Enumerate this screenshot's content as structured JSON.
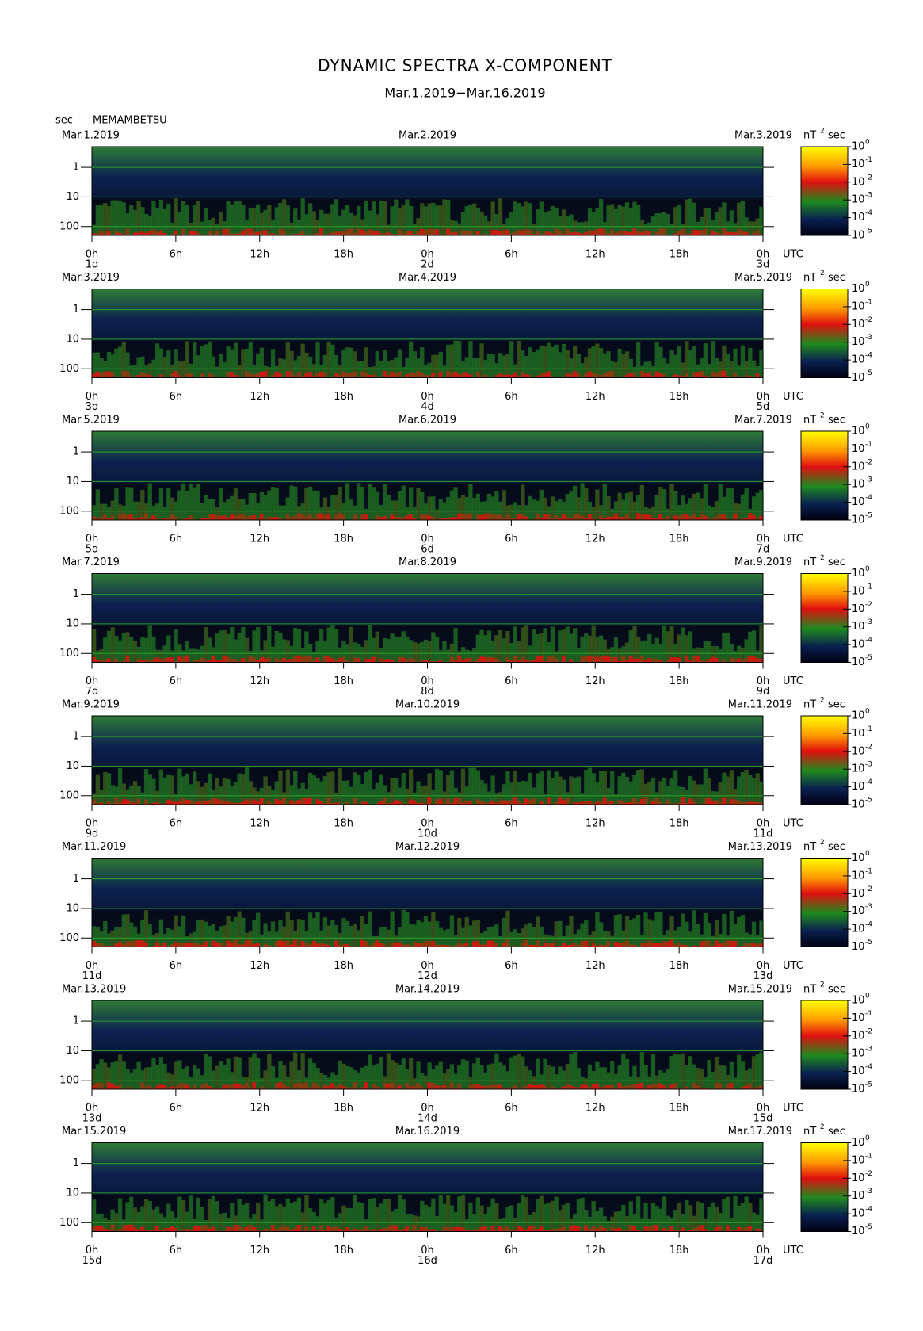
{
  "chart_data": {
    "type": "spectrogram",
    "title": "DYNAMIC SPECTRA X-COMPONENT",
    "subtitle": "Mar.1.2019−Mar.16.2019",
    "y_label": "sec",
    "station": "MEMAMBETSU",
    "x_unit": "UTC",
    "xlim": [
      0,
      48
    ],
    "xticks": [
      {
        "value": 0,
        "label": "0h"
      },
      {
        "value": 6,
        "label": "6h"
      },
      {
        "value": 12,
        "label": "12h"
      },
      {
        "value": 18,
        "label": "18h"
      },
      {
        "value": 24,
        "label": "0h"
      },
      {
        "value": 30,
        "label": "6h"
      },
      {
        "value": 36,
        "label": "12h"
      },
      {
        "value": 42,
        "label": "18h"
      },
      {
        "value": 48,
        "label": "0h"
      }
    ],
    "log_y": true,
    "ylim": [
      0.2,
      200
    ],
    "yticks": [
      1,
      10,
      100
    ],
    "colorbar": {
      "label": "nT",
      "label_exponent": "2",
      "unit": "sec",
      "lim": [
        1e-05,
        1
      ],
      "ticks": [
        {
          "value": 1,
          "label": "10",
          "exponent": "0"
        },
        {
          "value": 0.1,
          "label": "10",
          "exponent": "-1"
        },
        {
          "value": 0.01,
          "label": "10",
          "exponent": "-2"
        },
        {
          "value": 0.001,
          "label": "10",
          "exponent": "-3"
        },
        {
          "value": 0.0001,
          "label": "10",
          "exponent": "-4"
        },
        {
          "value": 1e-05,
          "label": "10",
          "exponent": "-5"
        }
      ]
    },
    "panels": [
      {
        "dates": [
          "Mar.1.2019",
          "Mar.2.2019",
          "Mar.3.2019"
        ],
        "days": [
          "1d",
          "2d",
          "3d"
        ]
      },
      {
        "dates": [
          "Mar.3.2019",
          "Mar.4.2019",
          "Mar.5.2019"
        ],
        "days": [
          "3d",
          "4d",
          "5d"
        ]
      },
      {
        "dates": [
          "Mar.5.2019",
          "Mar.6.2019",
          "Mar.7.2019"
        ],
        "days": [
          "5d",
          "6d",
          "7d"
        ]
      },
      {
        "dates": [
          "Mar.7.2019",
          "Mar.8.2019",
          "Mar.9.2019"
        ],
        "days": [
          "7d",
          "8d",
          "9d"
        ]
      },
      {
        "dates": [
          "Mar.9.2019",
          "Mar.10.2019",
          "Mar.11.2019"
        ],
        "days": [
          "9d",
          "10d",
          "11d"
        ]
      },
      {
        "dates": [
          "Mar.11.2019",
          "Mar.12.2019",
          "Mar.13.2019"
        ],
        "days": [
          "11d",
          "12d",
          "13d"
        ]
      },
      {
        "dates": [
          "Mar.13.2019",
          "Mar.14.2019",
          "Mar.15.2019"
        ],
        "days": [
          "13d",
          "14d",
          "15d"
        ]
      },
      {
        "dates": [
          "Mar.15.2019",
          "Mar.16.2019",
          "Mar.17.2019"
        ],
        "days": [
          "15d",
          "16d",
          "17d"
        ]
      }
    ]
  }
}
